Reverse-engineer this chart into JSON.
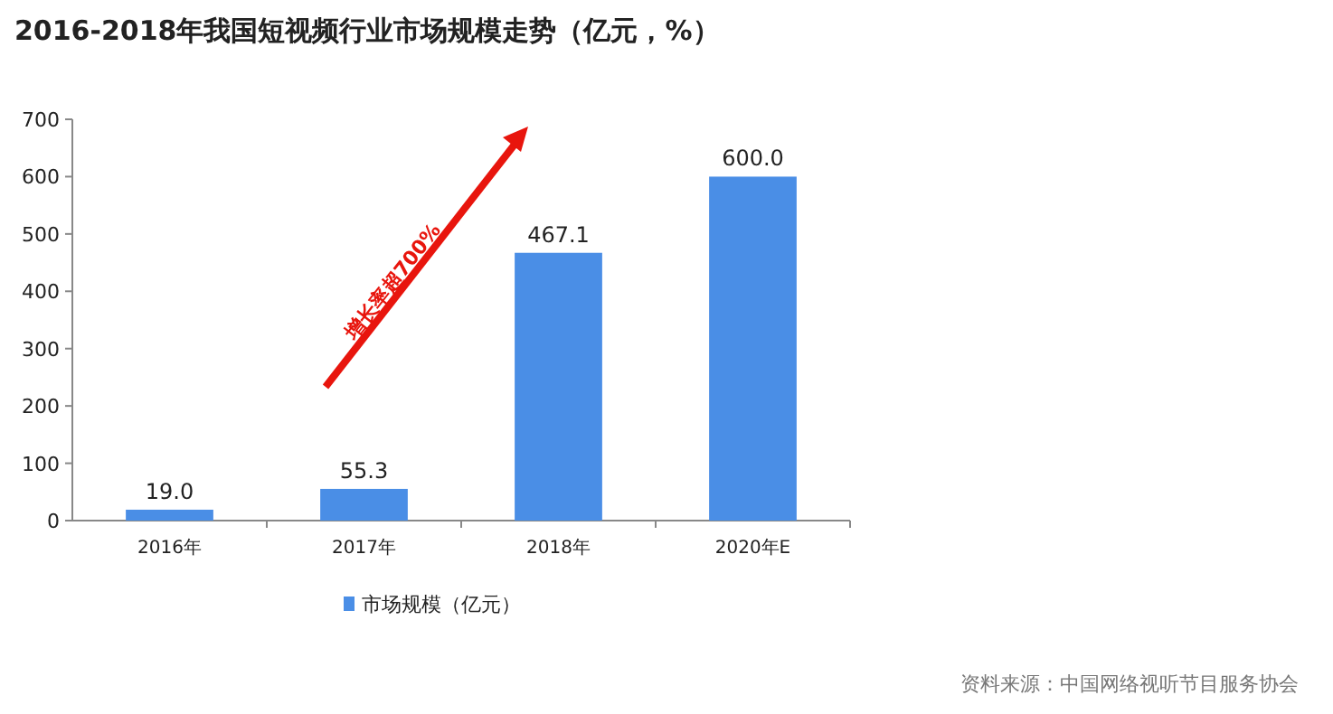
{
  "chart_data": {
    "type": "bar",
    "title": "2016-2018年我国短视频行业市场规模走势（亿元，%）",
    "categories": [
      "2016年",
      "2017年",
      "2018年",
      "2020年E"
    ],
    "series": [
      {
        "name": "市场规模（亿元）",
        "color": "#4a8ee6",
        "values": [
          19.0,
          55.3,
          467.1,
          600.0
        ],
        "value_labels": [
          "19.0",
          "55.3",
          "467.1",
          "600.0"
        ]
      }
    ],
    "ylim": [
      0,
      700
    ],
    "yticks": [
      0,
      100,
      200,
      300,
      400,
      500,
      600,
      700
    ],
    "legend": "bottom",
    "annotations": [
      "增长率超700%",
      "资料来源：中国网络视听节目服务协会"
    ]
  }
}
